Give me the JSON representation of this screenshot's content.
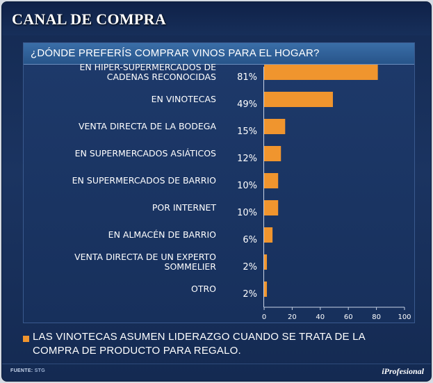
{
  "header": {
    "title": "CANAL DE COMPRA"
  },
  "chart_data": {
    "type": "bar",
    "orientation": "horizontal",
    "title": "¿DÓNDE PREFERÍS COMPRAR VINOS PARA EL HOGAR?",
    "categories": [
      "EN HIPER-SUPERMERCADOS DE CADENAS RECONOCIDAS",
      "EN VINOTECAS",
      "VENTA DIRECTA DE LA BODEGA",
      "EN SUPERMERCADOS ASIÁTICOS",
      "EN SUPERMERCADOS DE BARRIO",
      "POR INTERNET",
      "EN ALMACÉN DE BARRIO",
      "VENTA DIRECTA DE UN EXPERTO SOMMELIER",
      "OTRO"
    ],
    "category_lines": [
      [
        "EN HIPER-SUPERMERCADOS DE",
        "CADENAS RECONOCIDAS"
      ],
      [
        "EN VINOTECAS"
      ],
      [
        "VENTA DIRECTA DE LA BODEGA"
      ],
      [
        "EN SUPERMERCADOS ASIÁTICOS"
      ],
      [
        "EN SUPERMERCADOS DE BARRIO"
      ],
      [
        "POR INTERNET"
      ],
      [
        "EN ALMACÉN DE BARRIO"
      ],
      [
        "VENTA DIRECTA DE UN EXPERTO",
        "SOMMELIER"
      ],
      [
        "OTRO"
      ]
    ],
    "values": [
      81,
      49,
      15,
      12,
      10,
      10,
      6,
      2,
      2
    ],
    "value_labels": [
      "81%",
      "49%",
      "15%",
      "12%",
      "10%",
      "10%",
      "6%",
      "2%",
      "2%"
    ],
    "xlim": [
      0,
      100
    ],
    "xticks": [
      0,
      20,
      40,
      60,
      80,
      100
    ],
    "grid": false,
    "bar_color": "#f0952e"
  },
  "note": "LAS VINOTECAS ASUMEN LIDERAZGO CUANDO SE TRATA DE LA COMPRA DE PRODUCTO PARA REGALO.",
  "footer": {
    "source_label": "FUENTE:",
    "source_value": "STG",
    "brand": "iProfesional"
  }
}
